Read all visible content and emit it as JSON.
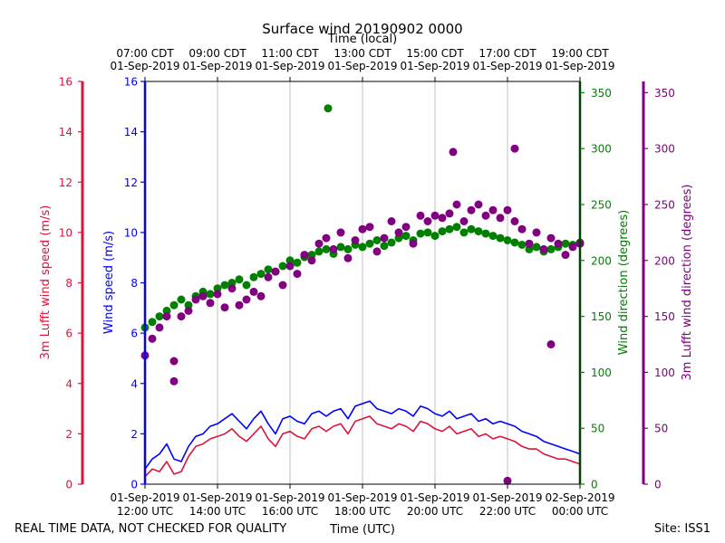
{
  "chart_data": {
    "type": "line",
    "title": "Surface wind 20190902 0000",
    "top_xlabel": "Time (local)",
    "xlabel": "Time (UTC)",
    "footer_left": "REAL TIME DATA, NOT CHECKED FOR QUALITY",
    "footer_right": "Site: ISS1",
    "x_hours_utc": [
      12,
      24
    ],
    "x_ticks_utc": [
      {
        "hour": 12,
        "line1": "01-Sep-2019",
        "line2": "12:00 UTC"
      },
      {
        "hour": 14,
        "line1": "01-Sep-2019",
        "line2": "14:00 UTC"
      },
      {
        "hour": 16,
        "line1": "01-Sep-2019",
        "line2": "16:00 UTC"
      },
      {
        "hour": 18,
        "line1": "01-Sep-2019",
        "line2": "18:00 UTC"
      },
      {
        "hour": 20,
        "line1": "01-Sep-2019",
        "line2": "20:00 UTC"
      },
      {
        "hour": 22,
        "line1": "01-Sep-2019",
        "line2": "22:00 UTC"
      },
      {
        "hour": 24,
        "line1": "02-Sep-2019",
        "line2": "00:00 UTC"
      }
    ],
    "x_ticks_local": [
      {
        "hour": 12,
        "line1": "07:00 CDT",
        "line2": "01-Sep-2019"
      },
      {
        "hour": 14,
        "line1": "09:00 CDT",
        "line2": "01-Sep-2019"
      },
      {
        "hour": 16,
        "line1": "11:00 CDT",
        "line2": "01-Sep-2019"
      },
      {
        "hour": 18,
        "line1": "13:00 CDT",
        "line2": "01-Sep-2019"
      },
      {
        "hour": 20,
        "line1": "15:00 CDT",
        "line2": "01-Sep-2019"
      },
      {
        "hour": 22,
        "line1": "17:00 CDT",
        "line2": "01-Sep-2019"
      },
      {
        "hour": 24,
        "line1": "19:00 CDT",
        "line2": "01-Sep-2019"
      }
    ],
    "axes": {
      "wind_speed": {
        "label": "Wind speed (m/s)",
        "ylim": [
          0,
          16
        ],
        "ticks": [
          0,
          2,
          4,
          6,
          8,
          10,
          12,
          14,
          16
        ],
        "color": "#0000ff"
      },
      "lufft_speed": {
        "label": "3m Lufft wind speed (m/s)",
        "ylim": [
          0,
          16
        ],
        "ticks": [
          0,
          2,
          4,
          6,
          8,
          10,
          12,
          14,
          16
        ],
        "color": "#dc143c"
      },
      "wind_dir": {
        "label": "Wind direction (degrees)",
        "ylim": [
          0,
          360
        ],
        "ticks": [
          0,
          50,
          100,
          150,
          200,
          250,
          300,
          350
        ],
        "color": "#008000"
      },
      "lufft_dir": {
        "label": "3m Lufft wind direction (degrees)",
        "ylim": [
          0,
          360
        ],
        "ticks": [
          0,
          50,
          100,
          150,
          200,
          250,
          300,
          350
        ],
        "color": "#800080"
      }
    },
    "series": [
      {
        "name": "Wind speed (m/s)",
        "kind": "line",
        "axis": "wind_speed",
        "color": "#0000ff",
        "x": [
          12.0,
          12.2,
          12.4,
          12.6,
          12.8,
          13.0,
          13.2,
          13.4,
          13.6,
          13.8,
          14.0,
          14.2,
          14.4,
          14.6,
          14.8,
          15.0,
          15.2,
          15.4,
          15.6,
          15.8,
          16.0,
          16.2,
          16.4,
          16.6,
          16.8,
          17.0,
          17.2,
          17.4,
          17.6,
          17.8,
          18.0,
          18.2,
          18.4,
          18.6,
          18.8,
          19.0,
          19.2,
          19.4,
          19.6,
          19.8,
          20.0,
          20.2,
          20.4,
          20.6,
          20.8,
          21.0,
          21.2,
          21.4,
          21.6,
          21.8,
          22.0,
          22.2,
          22.4,
          22.6,
          22.8,
          23.0,
          23.2,
          23.4,
          23.6,
          23.8,
          24.0
        ],
        "values": [
          0.6,
          1.0,
          1.2,
          1.6,
          1.0,
          0.9,
          1.5,
          1.9,
          2.0,
          2.3,
          2.4,
          2.6,
          2.8,
          2.5,
          2.2,
          2.6,
          2.9,
          2.4,
          2.0,
          2.6,
          2.7,
          2.5,
          2.4,
          2.8,
          2.9,
          2.7,
          2.9,
          3.0,
          2.6,
          3.1,
          3.2,
          3.3,
          3.0,
          2.9,
          2.8,
          3.0,
          2.9,
          2.7,
          3.1,
          3.0,
          2.8,
          2.7,
          2.9,
          2.6,
          2.7,
          2.8,
          2.5,
          2.6,
          2.4,
          2.5,
          2.4,
          2.3,
          2.1,
          2.0,
          1.9,
          1.7,
          1.6,
          1.5,
          1.4,
          1.3,
          1.2
        ]
      },
      {
        "name": "3m Lufft wind speed (m/s)",
        "kind": "line",
        "axis": "lufft_speed",
        "color": "#dc143c",
        "x": [
          12.0,
          12.2,
          12.4,
          12.6,
          12.8,
          13.0,
          13.2,
          13.4,
          13.6,
          13.8,
          14.0,
          14.2,
          14.4,
          14.6,
          14.8,
          15.0,
          15.2,
          15.4,
          15.6,
          15.8,
          16.0,
          16.2,
          16.4,
          16.6,
          16.8,
          17.0,
          17.2,
          17.4,
          17.6,
          17.8,
          18.0,
          18.2,
          18.4,
          18.6,
          18.8,
          19.0,
          19.2,
          19.4,
          19.6,
          19.8,
          20.0,
          20.2,
          20.4,
          20.6,
          20.8,
          21.0,
          21.2,
          21.4,
          21.6,
          21.8,
          22.0,
          22.2,
          22.4,
          22.6,
          22.8,
          23.0,
          23.2,
          23.4,
          23.6,
          23.8,
          24.0
        ],
        "values": [
          0.3,
          0.6,
          0.5,
          0.9,
          0.4,
          0.5,
          1.1,
          1.5,
          1.6,
          1.8,
          1.9,
          2.0,
          2.2,
          1.9,
          1.7,
          2.0,
          2.3,
          1.8,
          1.5,
          2.0,
          2.1,
          1.9,
          1.8,
          2.2,
          2.3,
          2.1,
          2.3,
          2.4,
          2.0,
          2.5,
          2.6,
          2.7,
          2.4,
          2.3,
          2.2,
          2.4,
          2.3,
          2.1,
          2.5,
          2.4,
          2.2,
          2.1,
          2.3,
          2.0,
          2.1,
          2.2,
          1.9,
          2.0,
          1.8,
          1.9,
          1.8,
          1.7,
          1.5,
          1.4,
          1.4,
          1.2,
          1.1,
          1.0,
          1.0,
          0.9,
          0.8
        ]
      },
      {
        "name": "Wind direction (degrees)",
        "kind": "scatter",
        "axis": "wind_dir",
        "color": "#008000",
        "x": [
          12.0,
          12.2,
          12.4,
          12.6,
          12.8,
          13.0,
          13.2,
          13.4,
          13.6,
          13.8,
          14.0,
          14.2,
          14.4,
          14.6,
          14.8,
          15.0,
          15.2,
          15.4,
          15.6,
          15.8,
          16.0,
          16.2,
          16.4,
          16.6,
          16.8,
          17.0,
          17.2,
          17.4,
          17.6,
          17.8,
          18.0,
          18.2,
          18.4,
          18.6,
          18.8,
          19.0,
          19.2,
          19.4,
          19.6,
          19.8,
          20.0,
          20.2,
          20.4,
          20.6,
          20.8,
          21.0,
          21.2,
          21.4,
          21.6,
          21.8,
          22.0,
          22.2,
          22.4,
          22.6,
          22.8,
          23.0,
          23.2,
          23.4,
          23.6,
          23.8,
          24.0,
          17.05
        ],
        "values": [
          140,
          145,
          150,
          155,
          160,
          165,
          160,
          168,
          172,
          170,
          175,
          178,
          180,
          183,
          178,
          185,
          188,
          192,
          190,
          195,
          200,
          198,
          203,
          205,
          208,
          210,
          206,
          212,
          210,
          214,
          212,
          215,
          218,
          213,
          216,
          220,
          222,
          218,
          224,
          225,
          222,
          226,
          228,
          230,
          225,
          228,
          226,
          224,
          222,
          220,
          218,
          216,
          214,
          210,
          212,
          208,
          210,
          212,
          215,
          214,
          216,
          336
        ]
      },
      {
        "name": "3m Lufft wind direction (degrees)",
        "kind": "scatter",
        "axis": "lufft_dir",
        "color": "#800080",
        "x": [
          12.0,
          12.2,
          12.4,
          12.6,
          12.8,
          13.0,
          13.2,
          13.4,
          13.6,
          13.8,
          14.0,
          14.2,
          14.4,
          14.6,
          14.8,
          15.0,
          15.2,
          15.4,
          15.6,
          15.8,
          16.0,
          16.2,
          16.4,
          16.6,
          16.8,
          17.0,
          17.2,
          17.4,
          17.6,
          17.8,
          18.0,
          18.2,
          18.4,
          18.6,
          18.8,
          19.0,
          19.2,
          19.4,
          19.6,
          19.8,
          20.0,
          20.2,
          20.4,
          20.6,
          20.8,
          21.0,
          21.2,
          21.4,
          21.6,
          21.8,
          22.0,
          22.2,
          22.4,
          22.6,
          22.8,
          23.0,
          23.2,
          23.4,
          23.6,
          23.8,
          24.0,
          12.8,
          22.0,
          22.2,
          23.2,
          20.5
        ],
        "values": [
          115,
          130,
          140,
          150,
          110,
          150,
          155,
          165,
          168,
          162,
          170,
          158,
          175,
          160,
          165,
          172,
          168,
          185,
          190,
          178,
          195,
          188,
          205,
          200,
          215,
          220,
          210,
          225,
          202,
          218,
          228,
          230,
          208,
          220,
          235,
          225,
          230,
          215,
          240,
          235,
          240,
          238,
          242,
          250,
          235,
          245,
          250,
          240,
          245,
          238,
          245,
          235,
          228,
          215,
          225,
          210,
          220,
          215,
          205,
          212,
          215,
          92,
          3,
          300,
          125,
          297
        ]
      }
    ]
  }
}
